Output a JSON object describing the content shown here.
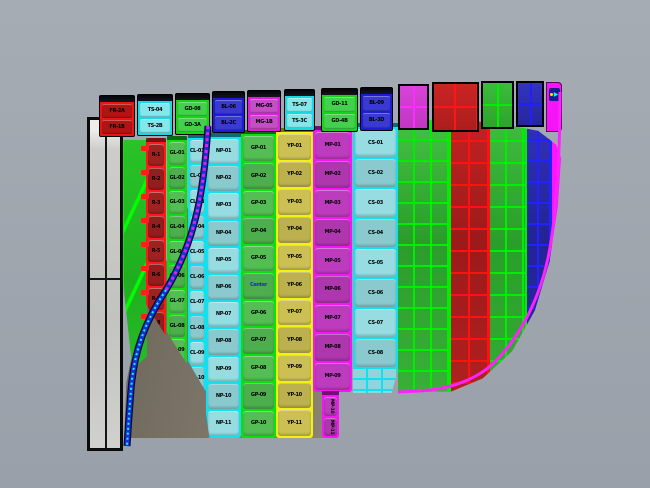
{
  "viewport": {
    "background": "#9ea4ac",
    "shadow_dark": "#6b6559",
    "shadow_light": "#8b8478"
  },
  "colors": {
    "red": "#ff1a1a",
    "green": "#12ee12",
    "cyan": "#17e3ef",
    "blue": "#1d1dd8",
    "magenta": "#f714f7",
    "yellow": "#f2f20e"
  },
  "highlight_label": "Center",
  "top_caps": [
    {
      "name": "cap-red",
      "labels": [
        "FR-2A",
        "FR-1B"
      ]
    },
    {
      "name": "cap-cyan",
      "labels": [
        "TS-04",
        "TS-2B"
      ]
    },
    {
      "name": "cap-green",
      "labels": [
        "GD-08",
        "GD-3A"
      ]
    },
    {
      "name": "cap-blue",
      "labels": [
        "BL-06",
        "BL-2C"
      ]
    },
    {
      "name": "cap-magenta",
      "labels": [
        "MG-05",
        "MG-1B"
      ]
    },
    {
      "name": "cap-cyan-2",
      "labels": [
        "TS-07",
        "TS-3C"
      ]
    },
    {
      "name": "cap-green-2",
      "labels": [
        "GD-11",
        "GD-4B"
      ]
    },
    {
      "name": "cap-blue-2",
      "labels": [
        "BL-09",
        "BL-3D"
      ]
    }
  ],
  "body_strips": {
    "red": {
      "cells": [
        "R-1",
        "R-2",
        "R-3",
        "R-4",
        "R-5",
        "R-6",
        "R-7",
        "R-8"
      ],
      "tab_count": 8
    },
    "green1": {
      "cells": [
        "GL-01",
        "GL-02",
        "GL-03",
        "GL-04",
        "GL-05",
        "GL-06",
        "GL-07",
        "GL-08",
        "GL-09"
      ]
    },
    "cyan1": {
      "cells": [
        "CL-01",
        "CL-02",
        "CL-03",
        "CL-04",
        "CL-05",
        "CL-06",
        "CL-07",
        "CL-08",
        "CL-09",
        "CL-10"
      ]
    },
    "cyanWide": {
      "cells": [
        "NP-01",
        "NP-02",
        "NP-03",
        "NP-04",
        "NP-05",
        "NP-06",
        "NP-07",
        "NP-08",
        "NP-09",
        "NP-10",
        "NP-11"
      ]
    },
    "green2": {
      "cells": [
        "GP-01",
        "GP-02",
        "GP-03",
        "GP-04",
        "GP-05",
        "Center",
        "GP-06",
        "GP-07",
        "GP-08",
        "GP-09",
        "GP-10"
      ]
    },
    "yellow": {
      "cells": [
        "YP-01",
        "YP-02",
        "YP-03",
        "YP-04",
        "YP-05",
        "YP-06",
        "YP-07",
        "YP-08",
        "YP-09",
        "YP-10",
        "YP-11"
      ]
    },
    "magenta": {
      "cells": [
        "MP-01",
        "MP-02",
        "MP-03",
        "MP-04",
        "MP-05",
        "MP-06",
        "MP-07",
        "MP-08",
        "MP-09"
      ],
      "rotated": [
        "MP-10",
        "MP-11"
      ]
    },
    "cyan2": {
      "cells": [
        "CS-01",
        "CS-02",
        "CS-03",
        "CS-04",
        "CS-05",
        "CS-06",
        "CS-07",
        "CS-08"
      ]
    }
  }
}
